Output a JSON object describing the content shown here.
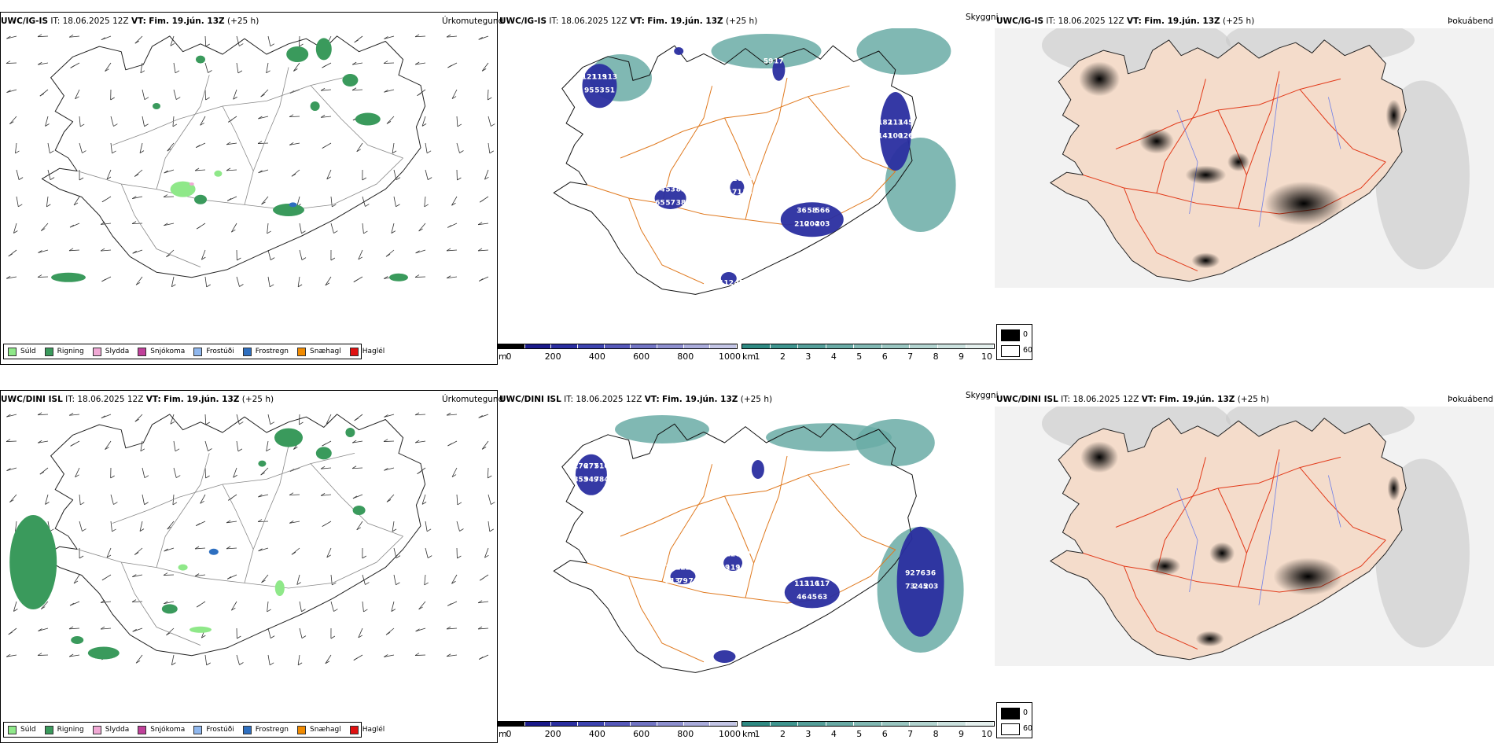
{
  "colors": {
    "rain": "#3a9a5c",
    "drizzle": "#8fe889",
    "sleet": "#f0a8d4",
    "snow": "#c0409a",
    "freezing_drizzle": "#8fb7ee",
    "freezing_rain": "#2e6fc0",
    "snow_grains": "#f08a00",
    "hail": "#e01010",
    "cloud_base_scale": [
      "#000000",
      "#1a1a8a",
      "#2a2ea0",
      "#3d44b0",
      "#5659ba",
      "#7275c4",
      "#8e90cf",
      "#aaacdb",
      "#c4c6e6"
    ],
    "visibility_scale": [
      "#2f8a83",
      "#3f958f",
      "#559f9a",
      "#6aaba6",
      "#81b8b3",
      "#9ac6c1",
      "#b3d4d0",
      "#cce2df",
      "#e5f0ee"
    ],
    "land_fog": "#f4dccb",
    "roads_orange": "#e07a20",
    "roads_red": "#e23a1a",
    "rivers": "#6f7fe8"
  },
  "rows": [
    {
      "model": "UWC/IG-IS",
      "it_label": "IT:",
      "it_value": "18.06.2025 12Z",
      "vt_label": "VT:",
      "vt_value": "Fim. 19.jún. 13Z",
      "lead": "(+25 h)",
      "labels": [
        "121",
        "119",
        "113",
        "95",
        "53",
        "51",
        "54",
        "53",
        "83",
        "65",
        "57",
        "38",
        "57",
        "16",
        "18",
        "22",
        "71",
        "53",
        "36",
        "58",
        "566",
        "210",
        "204",
        "203",
        "182",
        "113",
        "145",
        "141",
        "100",
        "126",
        "169",
        "135",
        "39",
        "24",
        "12",
        "45",
        "59",
        "17"
      ]
    },
    {
      "model": "UWC/DINI ISL",
      "it_label": "IT:",
      "it_value": "18.06.2025 12Z",
      "vt_label": "VT:",
      "vt_value": "Fim. 19.jún. 13Z",
      "lead": "(+25 h)",
      "labels": [
        "276",
        "277",
        "516",
        "353",
        "949",
        "784",
        "107",
        "122",
        "242",
        "213",
        "79",
        "76",
        "97",
        "126",
        "122",
        "129",
        "119",
        "119",
        "113",
        "116",
        "117",
        "46",
        "45",
        "63",
        "92",
        "76",
        "36",
        "73",
        "245",
        "203"
      ]
    }
  ],
  "panels": {
    "precip_title": "Úrkomutegund",
    "cloud_title": "Skyggni",
    "fog_title": "Þokuábendi"
  },
  "precip_legend": [
    {
      "label": "Súld",
      "color": "#8fe889"
    },
    {
      "label": "Rigning",
      "color": "#3a9a5c"
    },
    {
      "label": "Slydda",
      "color": "#f0a8d4"
    },
    {
      "label": "Snjókoma",
      "color": "#c0409a"
    },
    {
      "label": "Frostúði",
      "color": "#8fb7ee"
    },
    {
      "label": "Frostregn",
      "color": "#2e6fc0"
    },
    {
      "label": "Snæhagl",
      "color": "#f08a00"
    },
    {
      "label": "Haglél",
      "color": "#e01010"
    }
  ],
  "cloud_bar": {
    "unit": "m",
    "ticks": [
      "0",
      "200",
      "400",
      "600",
      "800",
      "1000"
    ]
  },
  "vis_bar": {
    "unit": "km",
    "ticks": [
      "1",
      "2",
      "3",
      "4",
      "5",
      "6",
      "7",
      "8",
      "9",
      "10"
    ]
  },
  "fog_key": [
    {
      "label": "0",
      "color": "#000000"
    },
    {
      "label": "60",
      "color": "#ffffff"
    }
  ]
}
